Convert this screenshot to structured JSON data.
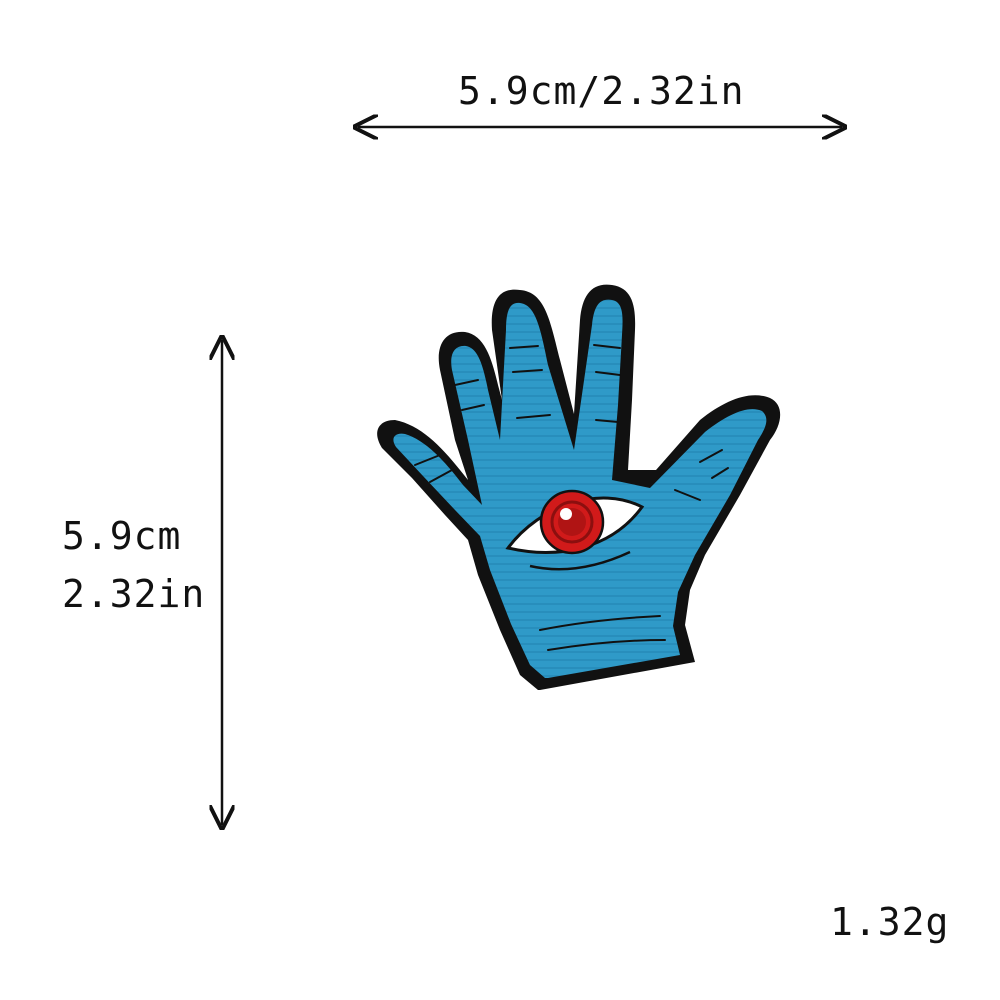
{
  "dimensions": {
    "width_label": "5.9cm/2.32in",
    "height_label_cm": "5.9cm",
    "height_label_in": "2.32in",
    "weight_label": "1.32g"
  },
  "product": {
    "icon": "hand-eye-patch",
    "colors": {
      "fabric": "#2f9ac8",
      "border": "#111111",
      "iris": "#d11a1a",
      "sclera": "#ffffff"
    }
  }
}
